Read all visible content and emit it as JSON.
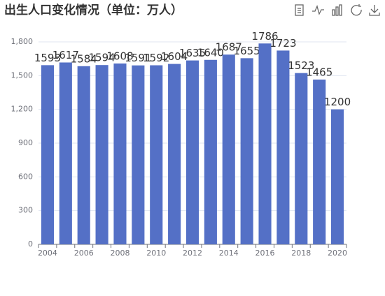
{
  "chart_data": {
    "type": "bar",
    "title": "出生人口变化情况（单位：万人）",
    "categories": [
      "2004",
      null,
      "2006",
      null,
      "2008",
      null,
      "2010",
      null,
      "2012",
      null,
      "2014",
      null,
      "2016",
      null,
      "2018",
      null,
      "2020"
    ],
    "values": [
      1593,
      1617,
      1584,
      1594,
      1608,
      1591,
      1592,
      1604,
      1635,
      1640,
      1687,
      1655,
      1786,
      1723,
      1523,
      1465,
      1200
    ],
    "color": "#5470c6",
    "ylim": [
      0,
      1800
    ],
    "yticks": [
      0,
      300,
      600,
      900,
      {
        "value": 1200,
        "label": "1,200"
      },
      {
        "value": 1500,
        "label": "1,500"
      },
      {
        "value": 1800,
        "label": "1,800"
      }
    ],
    "grid": true
  }
}
